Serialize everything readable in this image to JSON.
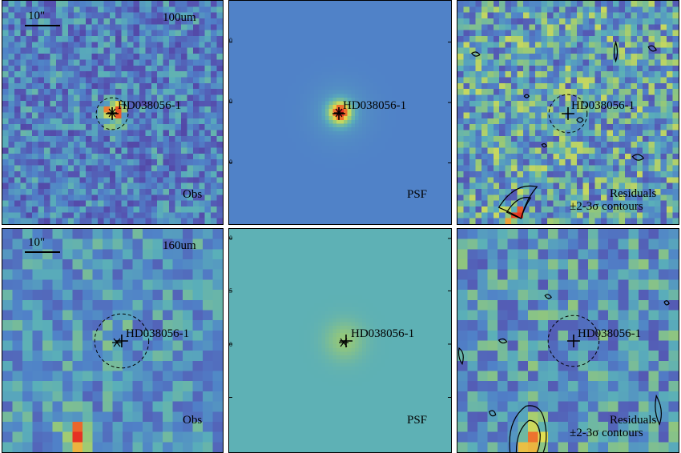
{
  "source": "HD038056-1",
  "rows": [
    {
      "band": "100um",
      "scale": "10\"",
      "panels": {
        "obs": {
          "label": "Obs"
        },
        "psf": {
          "label": "PSF"
        },
        "residual": {
          "label1": "Residuals",
          "label2": "±2-3σ contours"
        }
      },
      "psf_ticks": [
        "30",
        "20",
        "10"
      ]
    },
    {
      "band": "160um",
      "scale": "10\"",
      "panels": {
        "obs": {
          "label": "Obs"
        },
        "psf": {
          "label": "PSF"
        },
        "residual": {
          "label1": "Residuals",
          "label2": "±2-3σ contours"
        }
      },
      "psf_ticks": [
        "20",
        "15",
        "10",
        "5"
      ]
    }
  ],
  "colors": {
    "background_blue": "#5a79c6",
    "psf_row2_bg": "#5ea8ac",
    "hot": "#e8402a",
    "ink": "#000000"
  }
}
